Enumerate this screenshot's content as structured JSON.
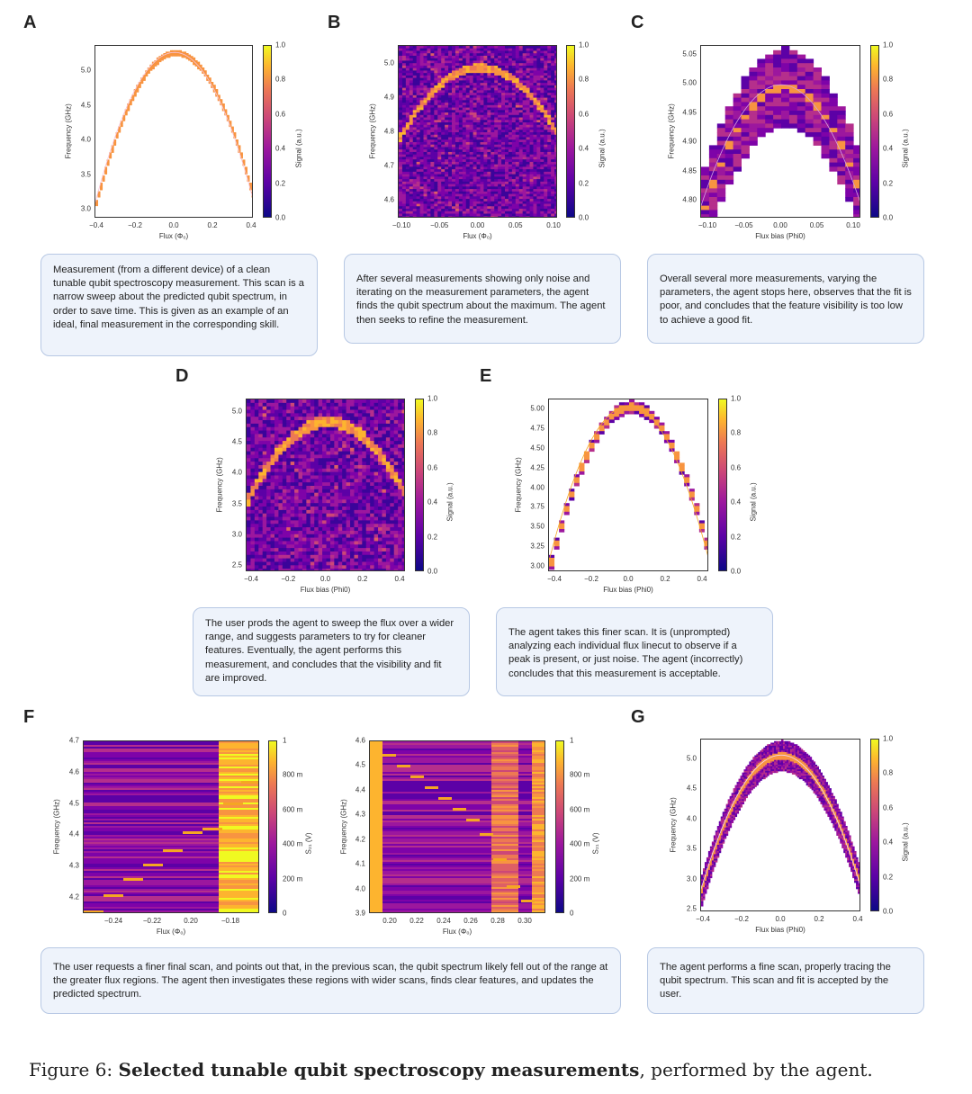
{
  "figure_caption": {
    "prefix": "Figure 6:",
    "bold": "Selected tunable qubit spectroscopy measurements",
    "suffix": ", performed by the agent."
  },
  "panels": {
    "A": {
      "letter": "A",
      "xlabel": "Flux (Φ₀)",
      "ylabel": "Frequency (GHz)",
      "clabel": "Signal (a.u.)",
      "xticks": [
        "−0.4",
        "−0.2",
        "0.0",
        "0.2",
        "0.4"
      ],
      "yticks": [
        "5.0",
        "4.5",
        "4.0",
        "3.5",
        "3.0"
      ],
      "cticks": [
        "1.0",
        "0.8",
        "0.6",
        "0.4",
        "0.2",
        "0.0"
      ],
      "caption": "Measurement (from a different device) of a clean tunable qubit spectroscopy measurement. This scan is a narrow sweep about the predicted qubit spectrum, in order to save time. This is given as an example of an ideal, final measurement in the corresponding skill."
    },
    "B": {
      "letter": "B",
      "xlabel": "Flux (Φ₀)",
      "ylabel": "Frequency (GHz)",
      "clabel": "Signal (a.u.)",
      "xticks": [
        "−0.10",
        "−0.05",
        "0.00",
        "0.05",
        "0.10"
      ],
      "yticks": [
        "5.0",
        "4.9",
        "4.8",
        "4.7",
        "4.6"
      ],
      "cticks": [
        "1.0",
        "0.8",
        "0.6",
        "0.4",
        "0.2",
        "0.0"
      ],
      "caption": "After several measurements showing only noise and iterating on the measurement parameters, the agent finds the qubit spectrum about the maximum. The agent then seeks to refine the measurement."
    },
    "C": {
      "letter": "C",
      "xlabel": "Flux bias (Phi0)",
      "ylabel": "Frequency (GHz)",
      "clabel": "Signal (a.u.)",
      "xticks": [
        "−0.10",
        "−0.05",
        "0.00",
        "0.05",
        "0.10"
      ],
      "yticks": [
        "5.05",
        "5.00",
        "4.95",
        "4.90",
        "4.85",
        "4.80"
      ],
      "cticks": [
        "1.0",
        "0.8",
        "0.6",
        "0.4",
        "0.2",
        "0.0"
      ],
      "caption": "Overall several more measurements, varying the parameters, the agent stops here, observes that the fit is poor, and concludes that the feature visibility is too low to achieve a good fit."
    },
    "D": {
      "letter": "D",
      "xlabel": "Flux bias (Phi0)",
      "ylabel": "Frequency (GHz)",
      "clabel": "Signal (a.u.)",
      "xticks": [
        "−0.4",
        "−0.2",
        "0.0",
        "0.2",
        "0.4"
      ],
      "yticks": [
        "5.0",
        "4.5",
        "4.0",
        "3.5",
        "3.0",
        "2.5"
      ],
      "cticks": [
        "1.0",
        "0.8",
        "0.6",
        "0.4",
        "0.2",
        "0.0"
      ],
      "caption": "The user prods the agent to sweep the flux over a wider range, and suggests parameters to try for cleaner features. Eventually, the agent performs this measurement, and concludes that the visibility and fit are improved."
    },
    "E": {
      "letter": "E",
      "xlabel": "Flux bias (Phi0)",
      "ylabel": "Frequency (GHz)",
      "clabel": "Signal (a.u.)",
      "xticks": [
        "−0.4",
        "−0.2",
        "0.0",
        "0.2",
        "0.4"
      ],
      "yticks": [
        "5.00",
        "4.75",
        "4.50",
        "4.25",
        "4.00",
        "3.75",
        "3.50",
        "3.25",
        "3.00"
      ],
      "cticks": [
        "1.0",
        "0.8",
        "0.6",
        "0.4",
        "0.2",
        "0.0"
      ],
      "caption": "The agent takes this finer scan. It is (unprompted) analyzing each individual flux linecut to observe if a peak is present, or just noise. The agent (incorrectly) concludes that this measurement is acceptable."
    },
    "F": {
      "letter": "F",
      "left": {
        "xlabel": "Flux (Φ₀)",
        "ylabel": "Frequency (GHz)",
        "clabel": "S₂₁ (V)",
        "xticks": [
          "−0.24",
          "−0.22",
          "0.20",
          "−0.18"
        ],
        "yticks": [
          "4.7",
          "4.6",
          "4.5",
          "4.4",
          "4.3",
          "4.2"
        ],
        "cticks": [
          "1",
          "800 m",
          "600 m",
          "400 m",
          "200 m",
          "0"
        ]
      },
      "right": {
        "xlabel": "Flux (Φ₀)",
        "ylabel": "Frequency (GHz)",
        "clabel": "S₂₁ (V)",
        "xticks": [
          "0.20",
          "0.22",
          "0.24",
          "0.26",
          "0.28",
          "0.30"
        ],
        "yticks": [
          "4.6",
          "4.5",
          "4.4",
          "4.3",
          "4.2",
          "4.1",
          "4.0",
          "3.9"
        ],
        "cticks": [
          "1",
          "800 m",
          "600 m",
          "400 m",
          "200 m",
          "0"
        ]
      },
      "caption": "The user requests a finer final scan, and points out that, in the previous scan, the qubit spectrum likely fell out of the range at the greater flux regions. The agent then investigates these regions with wider scans, finds clear features, and updates the predicted spectrum."
    },
    "G": {
      "letter": "G",
      "xlabel": "Flux bias (Phi0)",
      "ylabel": "Frequency (GHz)",
      "clabel": "Signal (a.u.)",
      "xticks": [
        "−0.4",
        "−0.2",
        "0.0",
        "0.2",
        "0.4"
      ],
      "yticks": [
        "5.0",
        "4.5",
        "4.0",
        "3.5",
        "3.0",
        "2.5"
      ],
      "cticks": [
        "1.0",
        "0.8",
        "0.6",
        "0.4",
        "0.2",
        "0.0"
      ],
      "caption": "The agent performs a fine scan, properly tracing the qubit spectrum. This scan and fit is accepted by the user."
    }
  },
  "colors": {
    "bg_dark": "#2a0a74",
    "accent": "#f5a623",
    "caption_bg": "#eef3fb"
  }
}
